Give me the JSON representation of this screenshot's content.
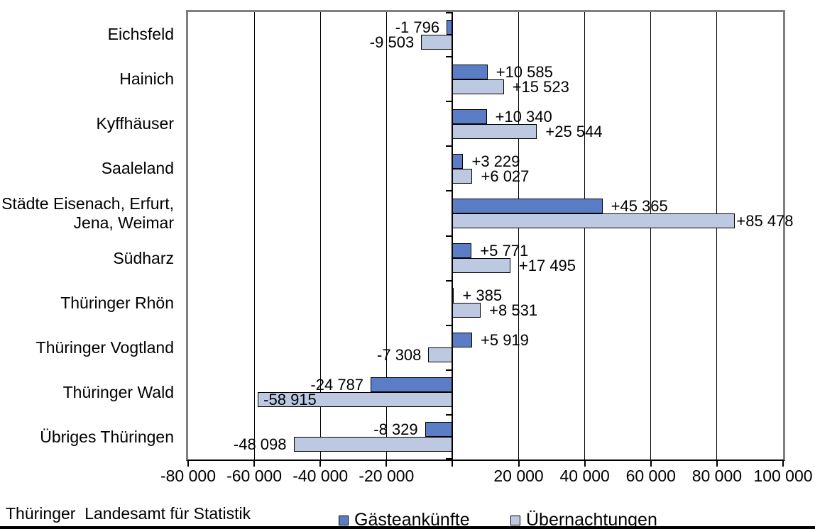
{
  "chart_data": {
    "type": "bar",
    "orientation": "horizontal",
    "title": "",
    "categories": [
      "Eichsfeld",
      "Hainich",
      "Kyffhäuser",
      "Saaleland",
      "Städte Eisenach, Erfurt,\nJena, Weimar",
      "Südharz",
      "Thüringer Rhön",
      "Thüringer Vogtland",
      "Thüringer Wald",
      "Übriges Thüringen"
    ],
    "series": [
      {
        "name": "Gästeankünfte",
        "color": "#5A7DC5",
        "values": [
          -1796,
          10585,
          10340,
          3229,
          45365,
          5771,
          385,
          5919,
          -24787,
          -8329
        ],
        "labels": [
          "-1 796",
          "+10 585",
          "+10 340",
          "+3 229",
          "+45 365",
          "+5 771",
          "+ 385",
          "+5 919",
          "-24 787",
          "-8 329"
        ],
        "label_inside_indices": []
      },
      {
        "name": "Übernachtungen",
        "color": "#BCC9E1",
        "values": [
          -9503,
          15523,
          25544,
          6027,
          85478,
          17495,
          8531,
          -7308,
          -58915,
          -48098
        ],
        "labels": [
          "-9 503",
          "+15 523",
          "+25 544",
          "+6 027",
          "+85 478",
          "+17 495",
          "+8 531",
          "-7 308",
          "-58 915",
          "-48 098"
        ],
        "label_inside_indices": [
          8
        ]
      }
    ],
    "xlim": [
      -80000,
      100000
    ],
    "x_tick_values": [
      -80000,
      -60000,
      -40000,
      -20000,
      0,
      20000,
      40000,
      60000,
      80000,
      100000
    ],
    "x_tick_labels": [
      "-80 000",
      "-60 000",
      "-40 000",
      "-20 000",
      "",
      "20 000",
      "40 000",
      "60 000",
      "80 000",
      "100 000"
    ],
    "grid": true,
    "legend_position": "bottom",
    "colors": {
      "plot_border": "#7F7F7F",
      "axis_line": "#000000",
      "gridline": "#000000",
      "bar_border": "#000000",
      "background": "#FFFFFF"
    }
  },
  "legend": {
    "items": [
      {
        "label": "Gästeankünfte",
        "color": "#5A7DC5"
      },
      {
        "label": "Übernachtungen",
        "color": "#BCC9E1"
      }
    ]
  },
  "footer": {
    "source": "Thüringer  Landesamt für Statistik"
  }
}
